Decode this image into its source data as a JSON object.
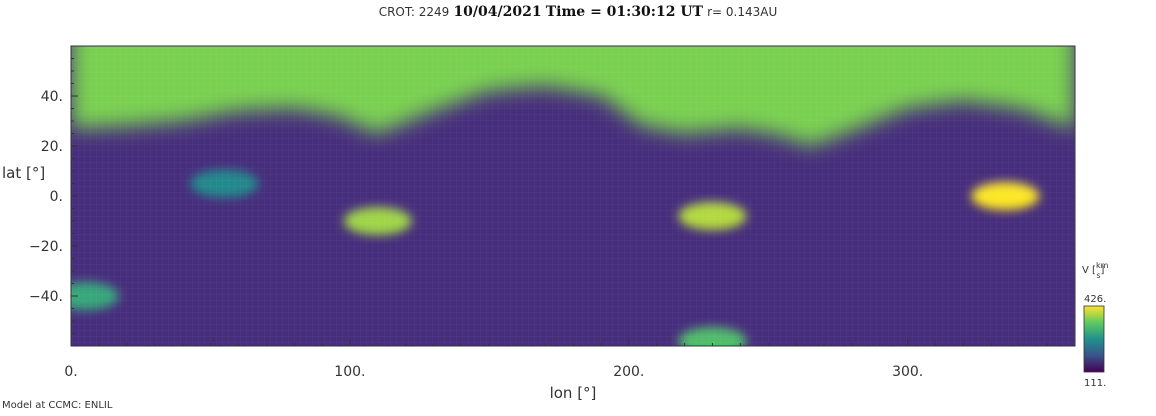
{
  "header": {
    "crot_label": "CROT: 2249",
    "date": "10/04/2021",
    "time_label": "Time = 01:30:12 UT",
    "radius": "r= 0.143AU"
  },
  "footer": {
    "credit": "Model at CCMC: ENLIL"
  },
  "chart_data": {
    "type": "heatmap",
    "xlabel": "lon [°]",
    "ylabel": "lat [°]",
    "xlim": [
      0,
      360
    ],
    "ylim": [
      -60,
      60
    ],
    "x_ticks": [
      0,
      100,
      200,
      300
    ],
    "x_tick_labels": [
      "0.",
      "100.",
      "200.",
      "300."
    ],
    "y_ticks": [
      -40,
      -20,
      0,
      20,
      40
    ],
    "y_tick_labels": [
      "−40.",
      "−20.",
      "0.",
      "20.",
      "40."
    ],
    "colorbar": {
      "label": "V [km/s]",
      "label_prefix": "V",
      "unit_numerator": "km",
      "unit_denominator": "s",
      "min": 111,
      "max": 426,
      "min_label": "111.",
      "max_label": "426.",
      "colormap": "viridis"
    },
    "field_description_units": "km/s",
    "neutral_sheet_lat": [
      [
        0,
        27
      ],
      [
        20,
        28
      ],
      [
        40,
        30
      ],
      [
        60,
        34
      ],
      [
        80,
        35
      ],
      [
        95,
        32
      ],
      [
        110,
        25
      ],
      [
        130,
        34
      ],
      [
        150,
        42
      ],
      [
        170,
        44
      ],
      [
        190,
        40
      ],
      [
        205,
        28
      ],
      [
        220,
        25
      ],
      [
        240,
        27
      ],
      [
        255,
        24
      ],
      [
        265,
        20
      ],
      [
        280,
        26
      ],
      [
        300,
        35
      ],
      [
        320,
        38
      ],
      [
        340,
        35
      ],
      [
        360,
        27
      ]
    ],
    "fast_wind_features": [
      {
        "lon": 335,
        "lat": 0,
        "value": 426
      },
      {
        "lon": 230,
        "lat": -8,
        "value": 390
      },
      {
        "lon": 110,
        "lat": -10,
        "value": 380
      },
      {
        "lon": 55,
        "lat": 5,
        "value": 260
      },
      {
        "lon": 5,
        "lat": -40,
        "value": 300
      },
      {
        "lon": 230,
        "lat": -58,
        "value": 330
      }
    ],
    "colors": {
      "fast": "#7ad151",
      "slow": "#440154",
      "mid": "#31688e"
    }
  }
}
